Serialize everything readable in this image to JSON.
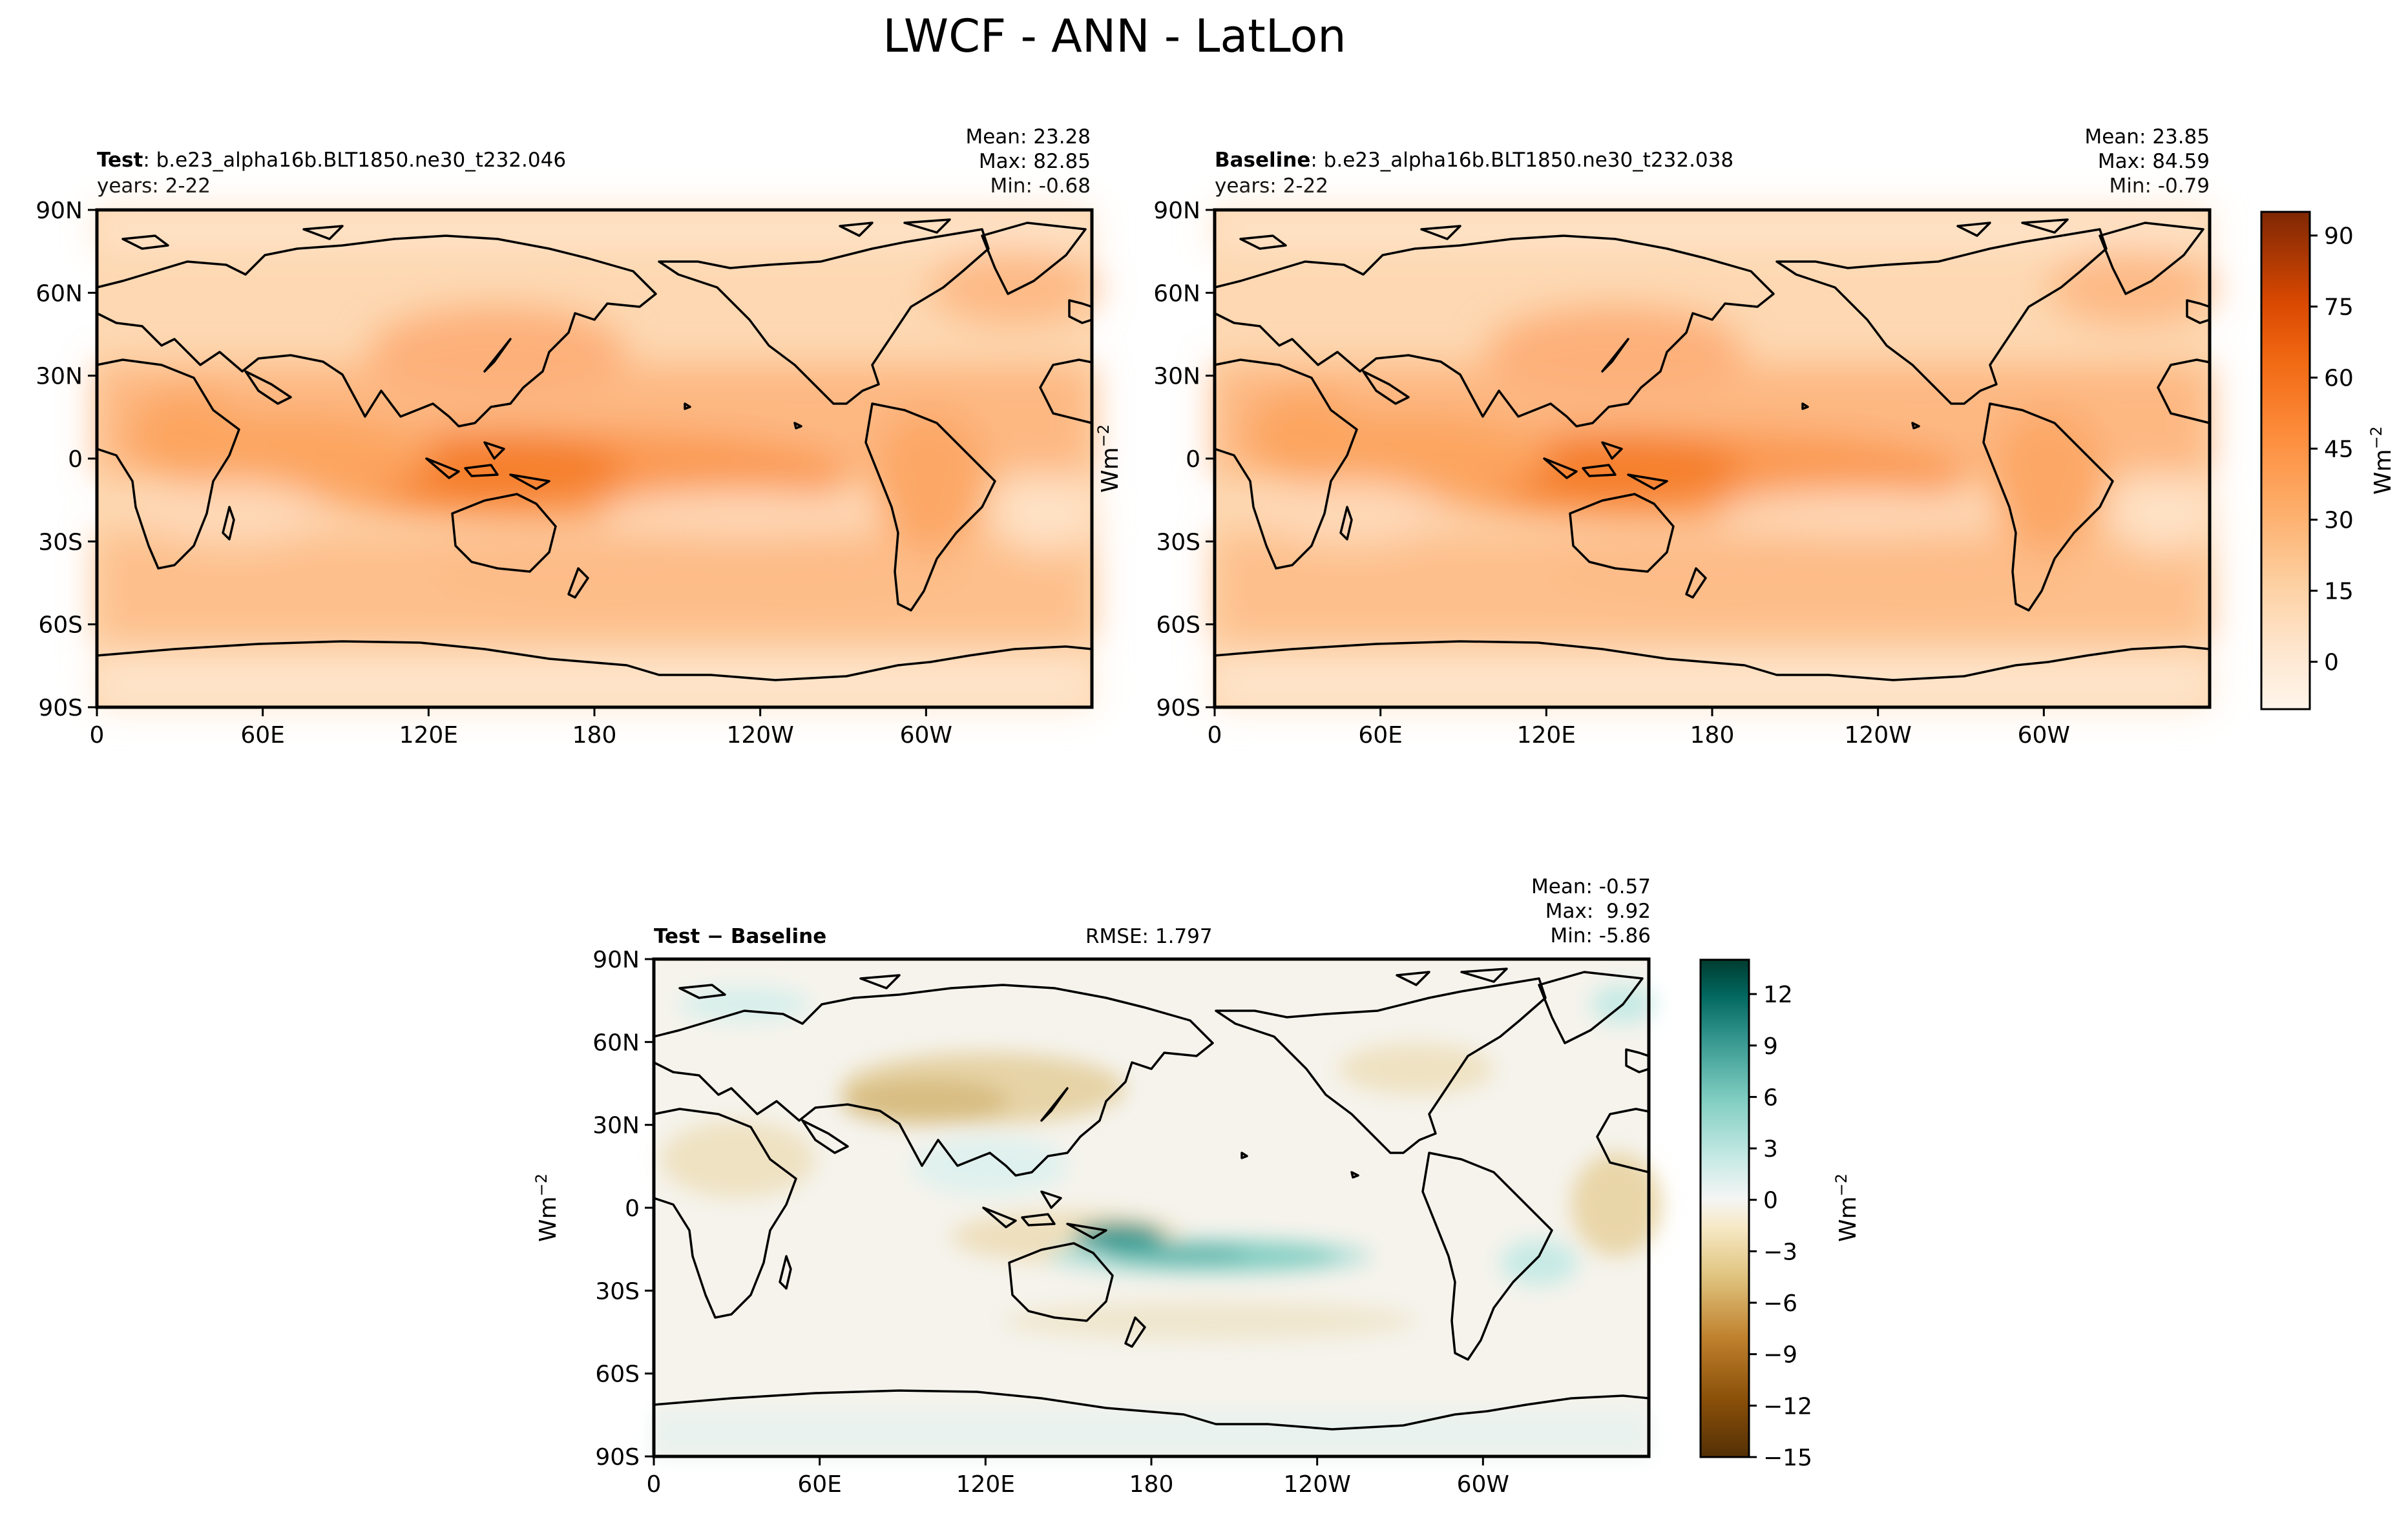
{
  "figure": {
    "title": "LWCF - ANN - LatLon"
  },
  "chart_data": [
    {
      "type": "heatmap",
      "id": "test",
      "label_bold": "Test",
      "label_rest": ": b.e23_alpha16b.BLT1850.ne30_t232.046",
      "years": "years: 2-22",
      "stats": [
        "Mean: 23.28",
        "Max: 82.85",
        "Min: -0.68"
      ],
      "ylabel": "Wm$^{-2}$",
      "xticks": [
        "0",
        "60E",
        "120E",
        "180",
        "120W",
        "60W"
      ],
      "yticks": [
        "90N",
        "60N",
        "30N",
        "0",
        "30S",
        "60S",
        "90S"
      ],
      "x_range_deg_east": [
        0,
        360
      ],
      "y_range_deg": [
        -90,
        90
      ],
      "colormap": "Oranges"
    },
    {
      "type": "heatmap",
      "id": "baseline",
      "label_bold": "Baseline",
      "label_rest": ": b.e23_alpha16b.BLT1850.ne30_t232.038",
      "years": "years: 2-22",
      "stats": [
        "Mean: 23.85",
        "Max: 84.59",
        "Min: -0.79"
      ],
      "xticks": [
        "0",
        "60E",
        "120E",
        "180",
        "120W",
        "60W"
      ],
      "yticks": [
        "90N",
        "60N",
        "30N",
        "0",
        "30S",
        "60S",
        "90S"
      ],
      "x_range_deg_east": [
        0,
        360
      ],
      "y_range_deg": [
        -90,
        90
      ],
      "colormap": "Oranges",
      "colorbar": {
        "ticks": [
          "90",
          "75",
          "60",
          "45",
          "30",
          "15",
          "0"
        ],
        "tick_values": [
          90,
          75,
          60,
          45,
          30,
          15,
          0
        ],
        "range": [
          -10,
          95
        ],
        "label": "Wm",
        "label_sup": "−2"
      }
    },
    {
      "type": "heatmap",
      "id": "difference",
      "label_bold": "Test − Baseline",
      "rmse": "RMSE: 1.797",
      "stats": [
        "Mean: -0.57",
        "Max:  9.92",
        "Min: -5.86"
      ],
      "ylabel": "Wm",
      "ylabel_sup": "−2",
      "xticks": [
        "0",
        "60E",
        "120E",
        "180",
        "120W",
        "60W"
      ],
      "yticks": [
        "90N",
        "60N",
        "30N",
        "0",
        "30S",
        "60S",
        "90S"
      ],
      "x_range_deg_east": [
        0,
        360
      ],
      "y_range_deg": [
        -90,
        90
      ],
      "colormap": "BrBG",
      "colorbar": {
        "ticks": [
          "12",
          "9",
          "6",
          "3",
          "0",
          "−3",
          "−6",
          "−9",
          "−12",
          "−15"
        ],
        "tick_values": [
          12,
          9,
          6,
          3,
          0,
          -3,
          -6,
          -9,
          -12,
          -15
        ],
        "range": [
          -15,
          14
        ],
        "label": "Wm",
        "label_sup": "−2"
      }
    }
  ],
  "colors": {
    "orange_scale": [
      "#fff5eb",
      "#fee6ce",
      "#fdd0a2",
      "#fdae6b",
      "#fd8d3c",
      "#f16913",
      "#d94801",
      "#a63603",
      "#7f2704"
    ],
    "brbg_scale": [
      "#543005",
      "#8c510a",
      "#bf812d",
      "#dfc27d",
      "#f6e8c3",
      "#f5f5f5",
      "#c7eae5",
      "#80cdc1",
      "#35978f",
      "#01665e",
      "#003c30"
    ],
    "coastline": "#000000"
  }
}
